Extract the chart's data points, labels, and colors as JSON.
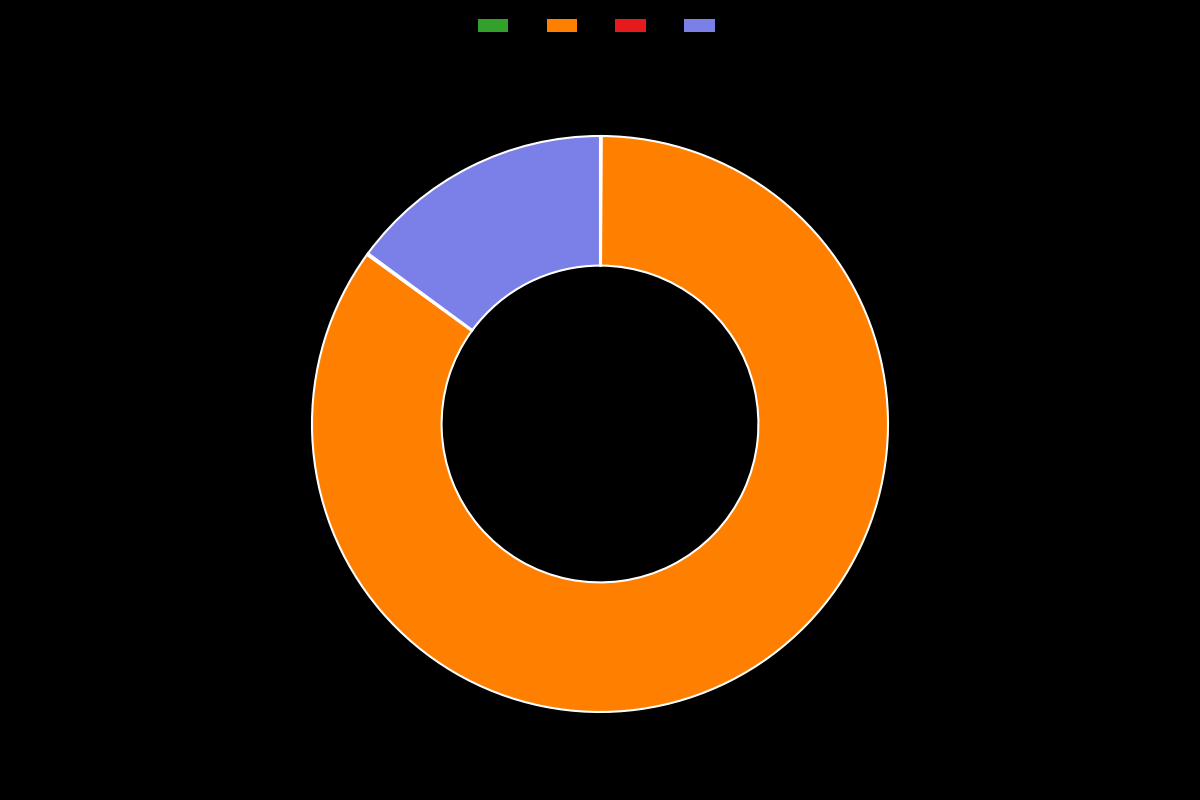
{
  "labels": [
    "",
    "",
    "",
    ""
  ],
  "values": [
    0.1,
    84.9,
    0.1,
    14.9
  ],
  "colors": [
    "#33a02c",
    "#ff8000",
    "#e41a1c",
    "#7b7fe8"
  ],
  "background_color": "#000000",
  "wedge_linewidth": 1.5,
  "wedge_linecolor": "#ffffff",
  "donut_width": 0.45,
  "startangle": 90,
  "legend_colors": [
    "#33a02c",
    "#ff8000",
    "#e41a1c",
    "#7b7fe8"
  ],
  "figsize": [
    12.0,
    8.0
  ],
  "dpi": 100
}
